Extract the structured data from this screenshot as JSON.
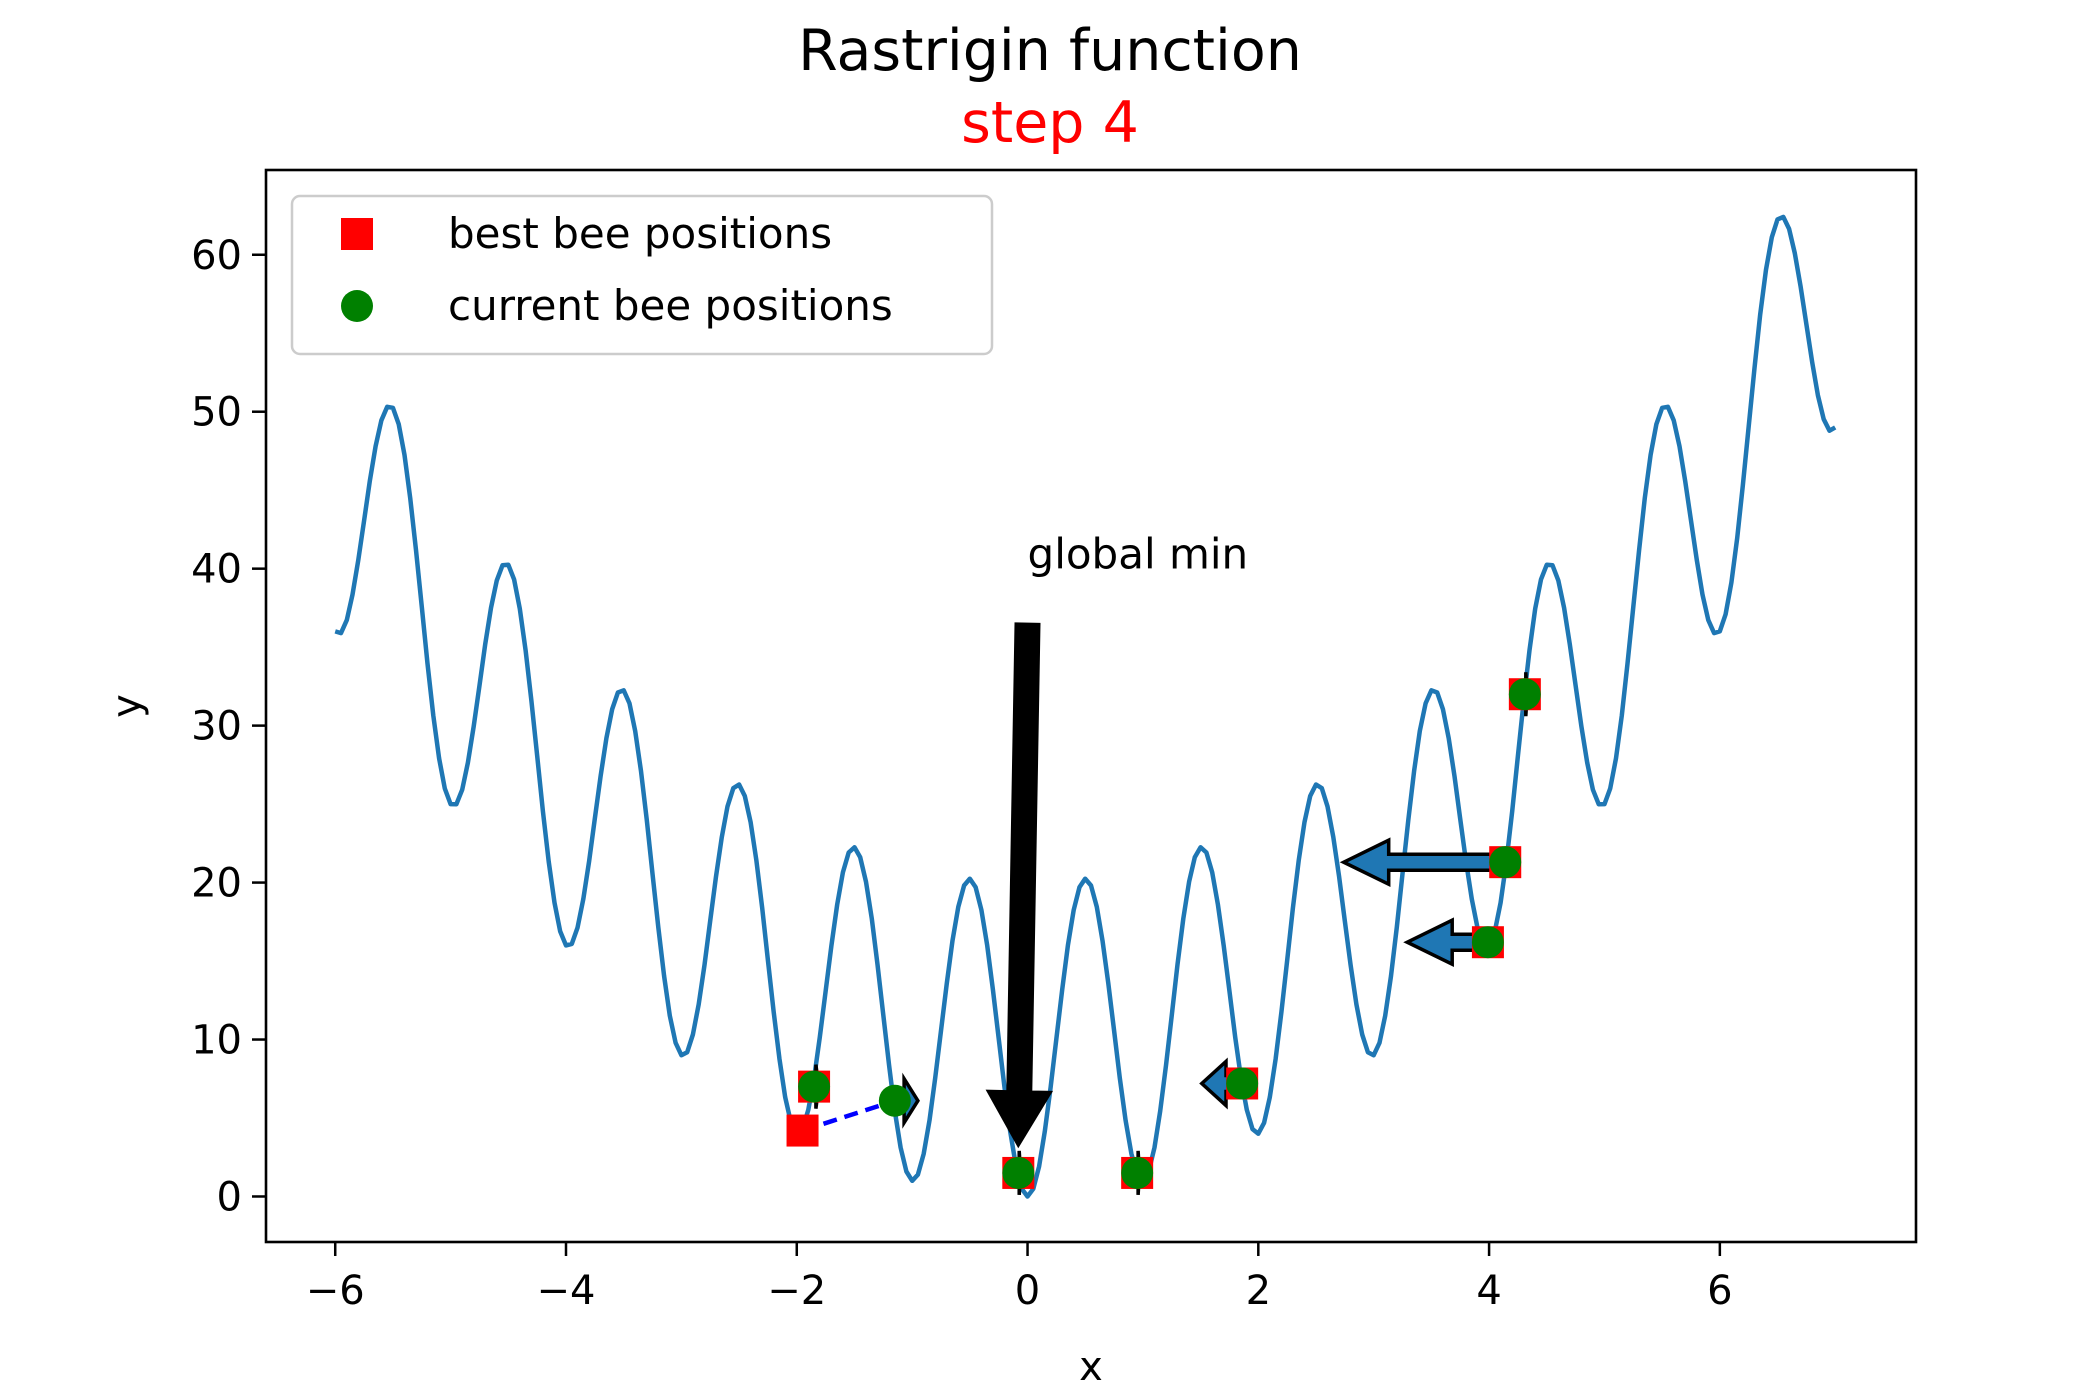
{
  "colors": {
    "curve": "#1f77b4",
    "best": "#ff0000",
    "current": "#008000",
    "subtitle": "#ff0000",
    "axes": "#000000"
  },
  "chart_data": {
    "type": "line",
    "title": "Rastrigin function",
    "subtitle": "step 4",
    "xlabel": "x",
    "ylabel": "y",
    "xlim": [
      -6.6,
      7.7
    ],
    "ylim": [
      -2.9,
      65.4
    ],
    "xticks": [
      -6,
      -4,
      -2,
      0,
      2,
      4,
      6
    ],
    "xtick_labels": [
      "−6",
      "−4",
      "−2",
      "0",
      "2",
      "4",
      "6"
    ],
    "yticks": [
      0,
      10,
      20,
      30,
      40,
      50,
      60
    ],
    "ytick_labels": [
      "0",
      "10",
      "20",
      "30",
      "40",
      "50",
      "60"
    ],
    "grid": false,
    "legend_position": "top-left",
    "function": {
      "name": "Rastrigin",
      "A": 10,
      "x_range": [
        -6,
        7
      ],
      "samples": 261
    },
    "series": [
      {
        "name": "best bee positions",
        "marker": "square",
        "points": [
          {
            "x": -1.95,
            "y": 4.2
          },
          {
            "x": -1.85,
            "y": 7.0
          },
          {
            "x": -0.08,
            "y": 1.5
          },
          {
            "x": 0.95,
            "y": 1.5
          },
          {
            "x": 1.86,
            "y": 7.2
          },
          {
            "x": 3.99,
            "y": 16.2
          },
          {
            "x": 4.14,
            "y": 21.3
          },
          {
            "x": 4.31,
            "y": 32.0
          }
        ]
      },
      {
        "name": "current bee positions",
        "marker": "circle",
        "points": [
          {
            "x": -1.85,
            "y": 7.0
          },
          {
            "x": -1.15,
            "y": 6.1
          },
          {
            "x": -0.08,
            "y": 1.5
          },
          {
            "x": 0.95,
            "y": 1.5
          },
          {
            "x": 1.86,
            "y": 7.2
          },
          {
            "x": 3.99,
            "y": 16.2
          },
          {
            "x": 4.14,
            "y": 21.3
          },
          {
            "x": 4.31,
            "y": 32.0
          }
        ]
      }
    ],
    "velocity_arrows": [
      {
        "x": 4.14,
        "y": 21.3,
        "dx": -1.4,
        "dy": 0
      },
      {
        "x": 3.99,
        "y": 16.2,
        "dx": -0.7,
        "dy": 0
      },
      {
        "x": 1.86,
        "y": 7.2,
        "dx": -0.35,
        "dy": 0
      },
      {
        "x": -1.15,
        "y": 6.1,
        "dx": 0.2,
        "dy": 0
      },
      {
        "x": -1.85,
        "y": 7.0,
        "dx": 0.04,
        "dy": 0
      },
      {
        "x": -0.08,
        "y": 1.5,
        "dx": 0.02,
        "dy": 0
      },
      {
        "x": 0.95,
        "y": 1.5,
        "dx": 0.02,
        "dy": 0
      },
      {
        "x": 4.31,
        "y": 32.0,
        "dx": 0.02,
        "dy": 0
      }
    ],
    "move_line": {
      "from": {
        "x": -1.95,
        "y": 4.2
      },
      "to": {
        "x": -1.15,
        "y": 6.1
      }
    },
    "annotation": {
      "text": "global min",
      "text_x": 0.0,
      "text_y": 40,
      "arrow_from": {
        "x": 0.0,
        "y": 36.5
      },
      "arrow_to": {
        "x": -0.08,
        "y": 3.2
      }
    }
  }
}
